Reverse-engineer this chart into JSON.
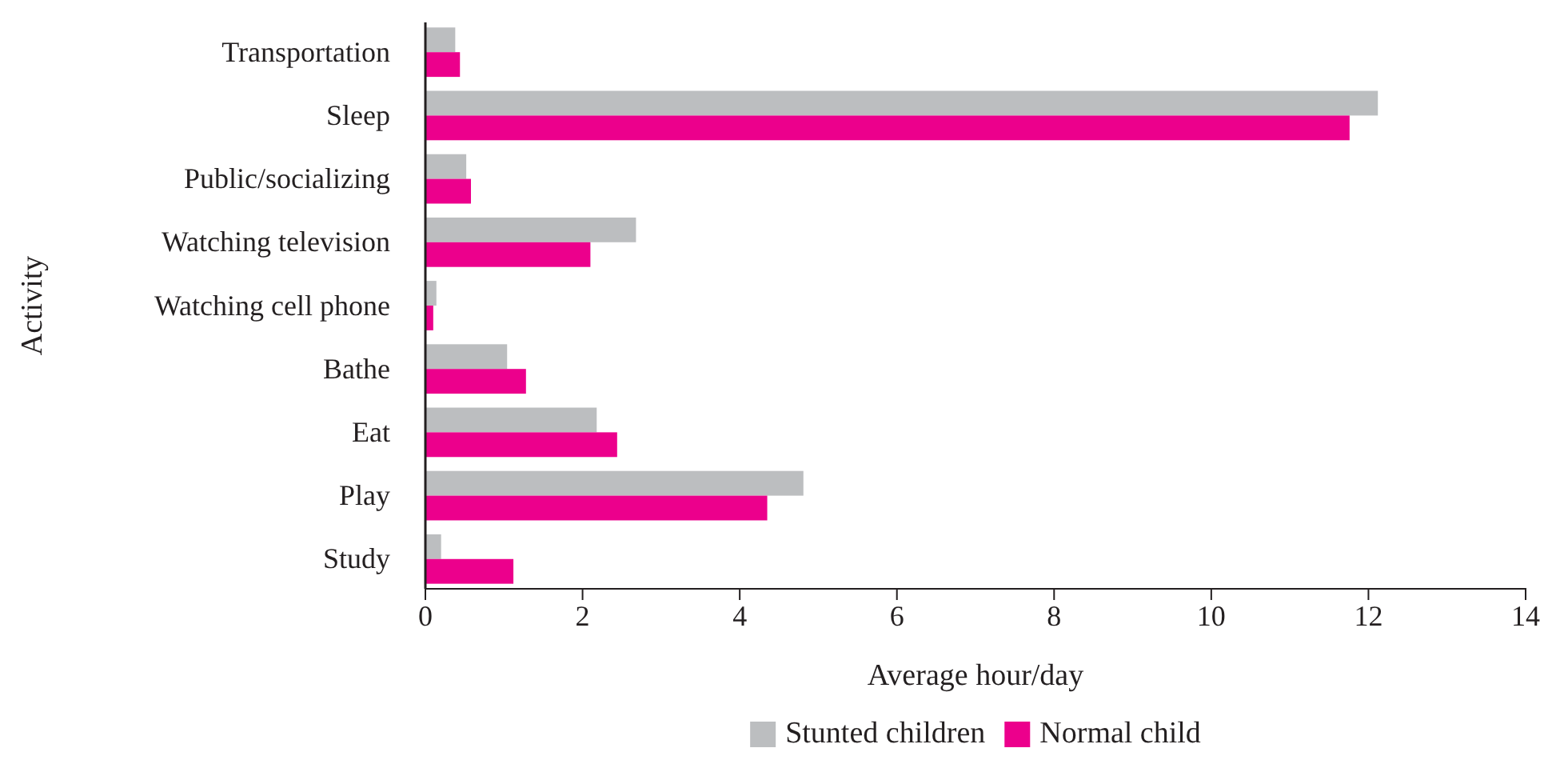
{
  "chart_data": {
    "type": "bar",
    "orientation": "horizontal",
    "xlabel": "Average hour/day",
    "ylabel": "Activity",
    "categories": [
      "Transportation",
      "Sleep",
      "Public/socializing",
      "Watching television",
      "Watching cell phone",
      "Bathe",
      "Eat",
      "Play",
      "Study"
    ],
    "series": [
      {
        "name": "Stunted children",
        "color": "#bcbec0",
        "values": [
          0.38,
          12.12,
          0.52,
          2.68,
          0.14,
          1.04,
          2.18,
          4.81,
          0.2
        ]
      },
      {
        "name": "Normal child",
        "color": "#ec008c",
        "values": [
          0.44,
          11.76,
          0.58,
          2.1,
          0.1,
          1.28,
          2.44,
          4.35,
          1.12
        ]
      }
    ],
    "xlim": [
      0,
      14
    ],
    "xticks": [
      0,
      2,
      4,
      6,
      8,
      10,
      12,
      14
    ],
    "grid": false,
    "legend": "bottom"
  }
}
